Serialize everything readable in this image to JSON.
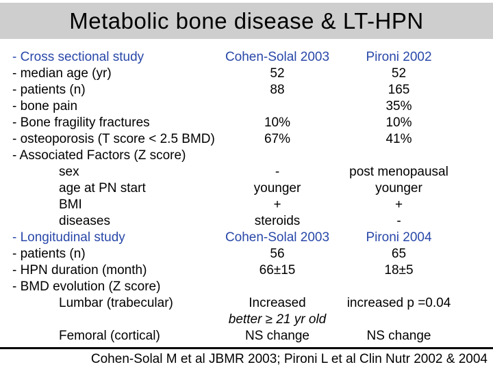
{
  "title": "Metabolic bone disease & LT-HPN",
  "table": {
    "column_headers": {
      "study1": "Cohen-Solal 2003",
      "study2": "Pironi 2002"
    },
    "rows": [
      {
        "label": "- Cross sectional study",
        "indent": false,
        "style": "header",
        "mid": "Cohen-Solal 2003",
        "right": "Pironi 2002"
      },
      {
        "label": "- median age (yr)",
        "indent": false,
        "mid": "52",
        "right": "52"
      },
      {
        "label": "- patients (n)",
        "indent": false,
        "mid": "88",
        "right": "165"
      },
      {
        "label": "- bone pain",
        "indent": false,
        "mid": "",
        "right": "35%"
      },
      {
        "label": "- Bone fragility fractures",
        "indent": false,
        "mid": "10%",
        "right": "10%"
      },
      {
        "label": "- osteoporosis (T score < 2.5 BMD)",
        "indent": false,
        "mid": "67%",
        "right": "41%"
      },
      {
        "label": "- Associated Factors (Z score)",
        "indent": false,
        "mid": "",
        "right": ""
      },
      {
        "label": "sex",
        "indent": true,
        "mid": "-",
        "right": "post menopausal"
      },
      {
        "label": "age at PN start",
        "indent": true,
        "mid": "younger",
        "right": "younger"
      },
      {
        "label": "BMI",
        "indent": true,
        "mid": "+",
        "right": "+"
      },
      {
        "label": "diseases",
        "indent": true,
        "mid": "steroids",
        "right": "-"
      },
      {
        "label": "- Longitudinal study",
        "indent": false,
        "style": "header",
        "mid": "Cohen-Solal 2003",
        "right": "Pironi 2004"
      },
      {
        "label": "- patients (n)",
        "indent": false,
        "mid": "56",
        "right": "65"
      },
      {
        "label": "- HPN duration (month)",
        "indent": false,
        "mid": "66±15",
        "right": "18±5"
      },
      {
        "label": "- BMD evolution (Z score)",
        "indent": false,
        "mid": "",
        "right": ""
      },
      {
        "label": "Lumbar (trabecular)",
        "indent": true,
        "mid": "Increased",
        "right": "increased p =0.04"
      },
      {
        "label": "",
        "indent": true,
        "mid": "better ≥ 21 yr old",
        "mid_italic": true,
        "right": ""
      },
      {
        "label": "Femoral (cortical)",
        "indent": true,
        "mid": "NS change",
        "right": "NS change"
      }
    ]
  },
  "footer": {
    "citation": "Cohen-Solal M et al JBMR 2003; Pironi L et al Clin Nutr 2002 & 2004"
  },
  "colors": {
    "background": "#ffffff",
    "title_bar_bg": "#cecece",
    "accent_blue": "#2847a8",
    "text": "#000000",
    "divider": "#000000"
  }
}
